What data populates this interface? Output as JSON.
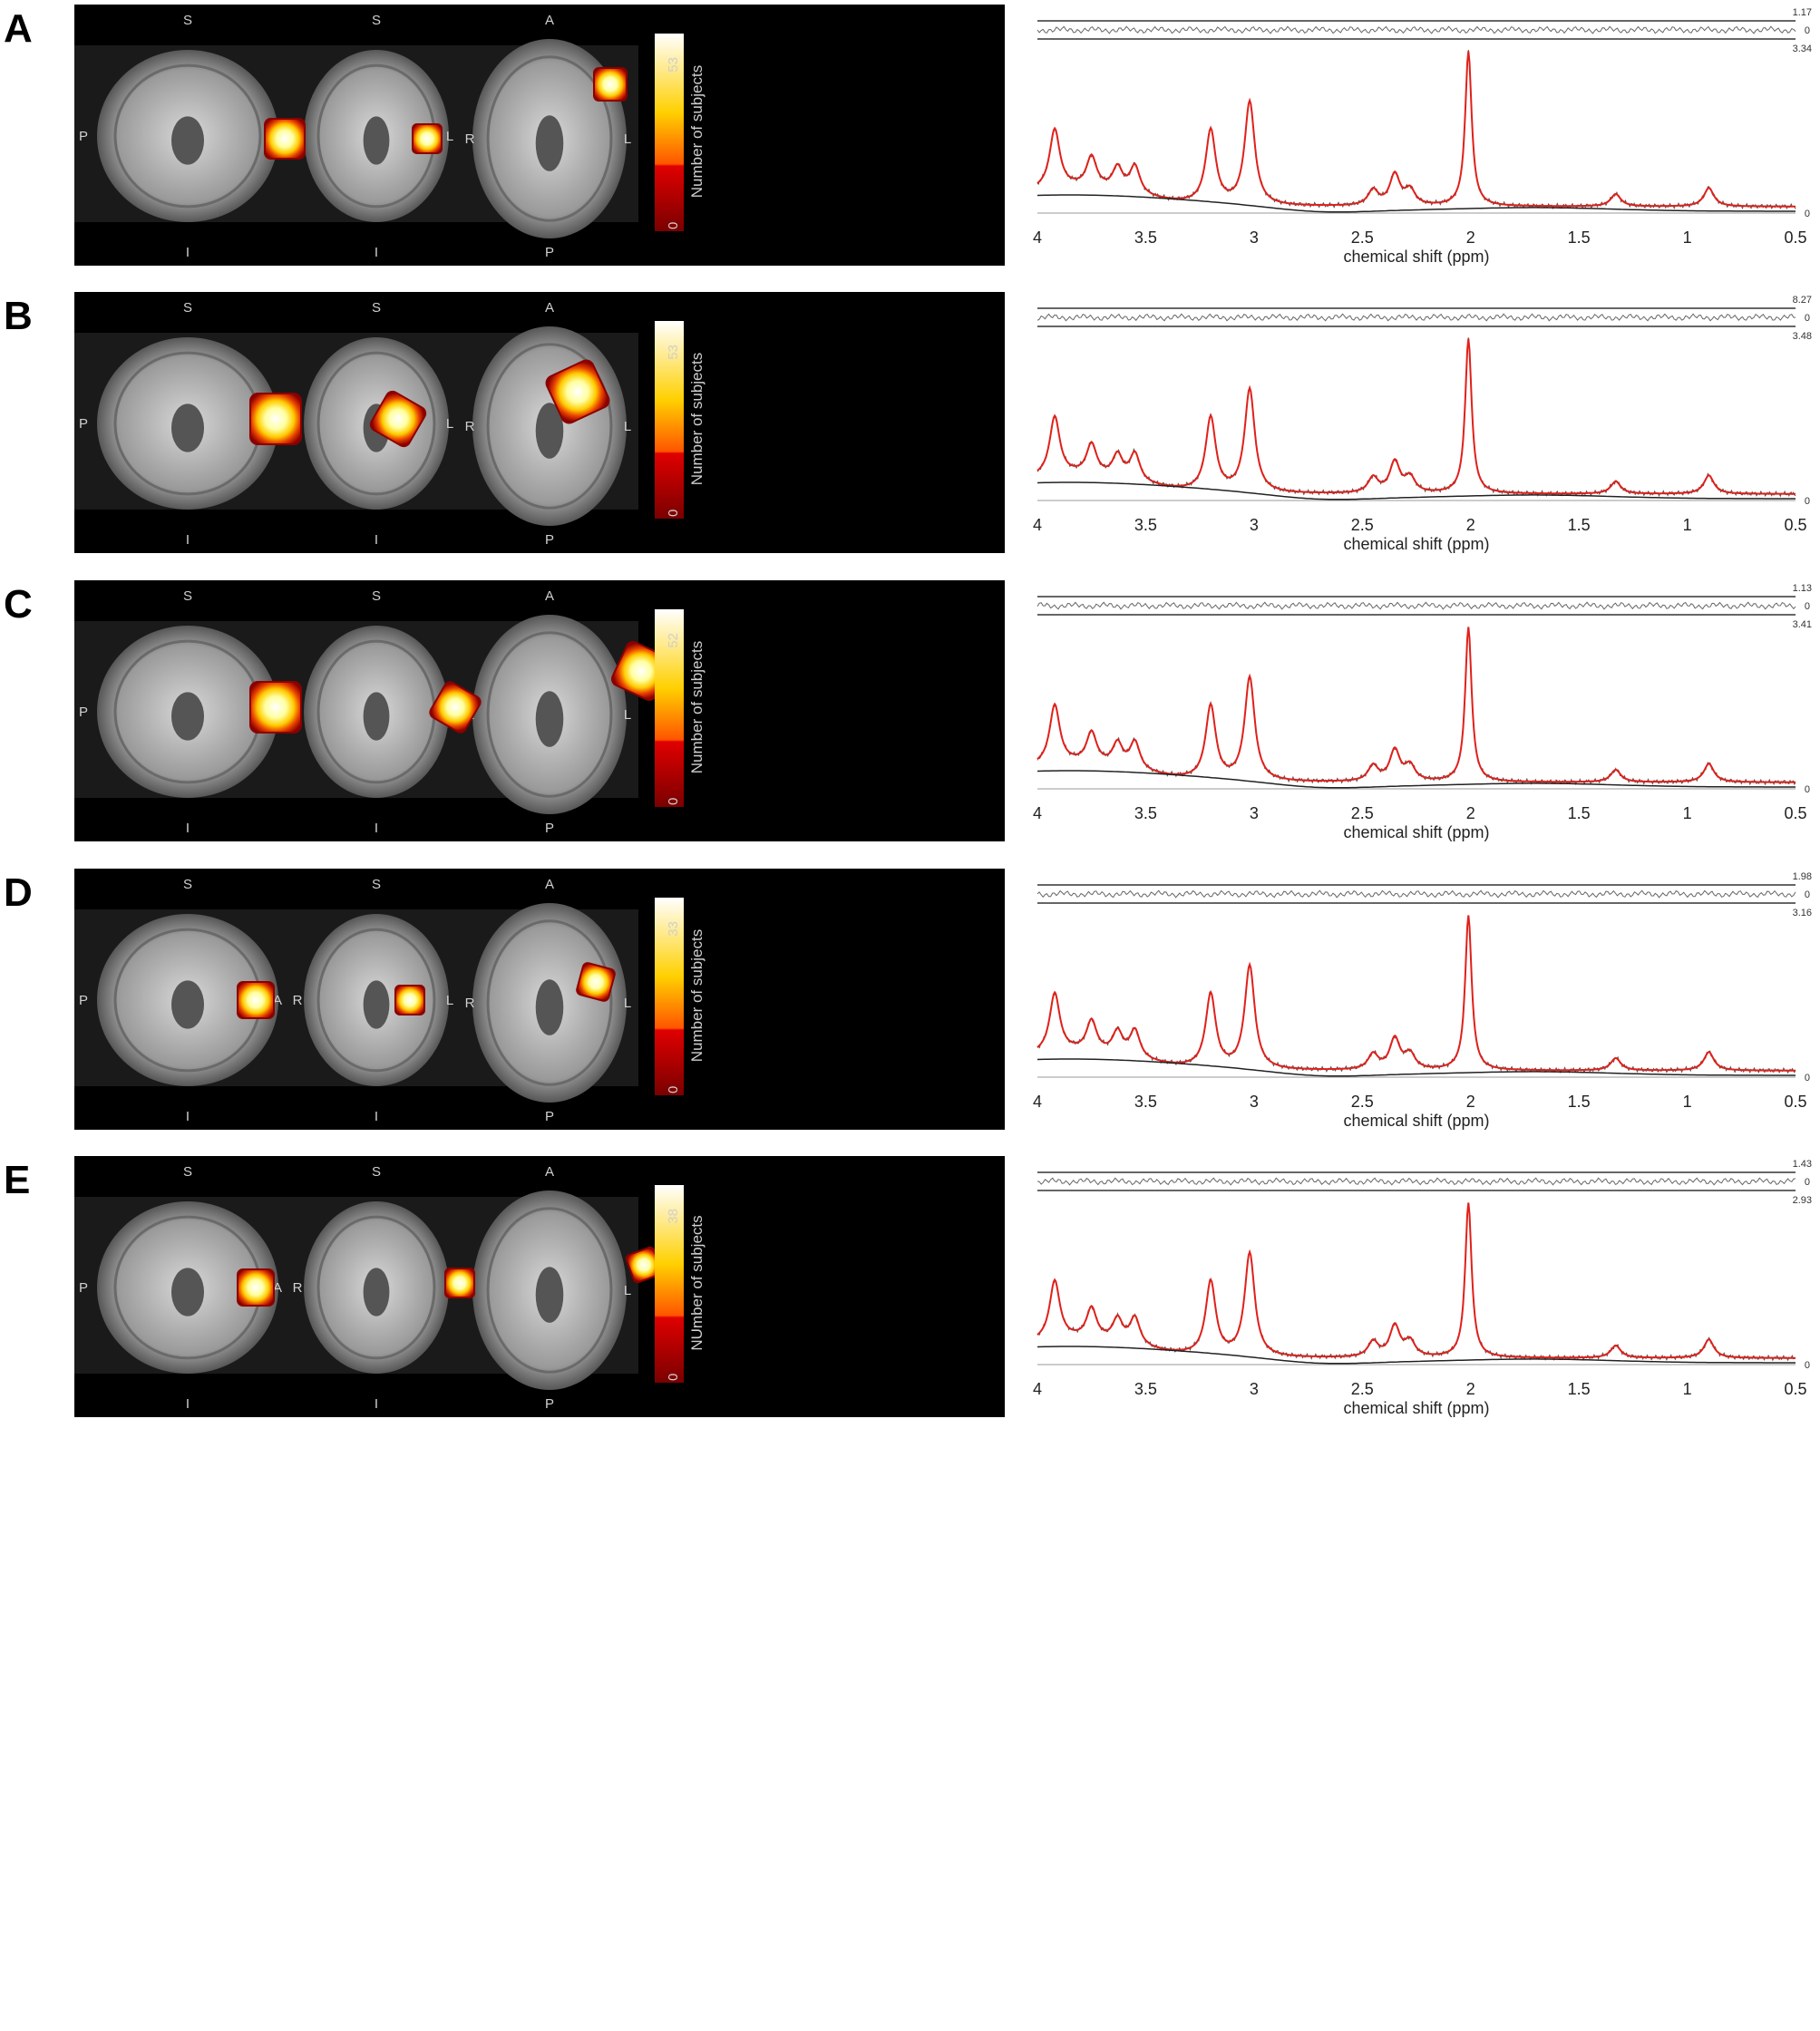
{
  "figure": {
    "x_axis_label": "chemical shift (ppm)",
    "x_ticks": [
      "4",
      "3.5",
      "3",
      "2.5",
      "2",
      "1.5",
      "1",
      "0.5"
    ],
    "orientation_labels": {
      "sagittal": {
        "top": "S",
        "bottom": "I",
        "left": "P",
        "right": "A"
      },
      "coronal": {
        "top": "S",
        "bottom": "I",
        "left": "R",
        "right": "L"
      },
      "axial": {
        "top": "A",
        "bottom": "P",
        "left": "R",
        "right": "L"
      }
    },
    "colorbar_min": "0",
    "panels": [
      {
        "letter": "A",
        "colorbar_label": "Number of subjects",
        "colorbar_max": "53",
        "residual_scale": "1.17",
        "residual_zero": "0",
        "spectrum_max": "3.34",
        "spectrum_zero": "0"
      },
      {
        "letter": "B",
        "colorbar_label": "Number of subjects",
        "colorbar_max": "53",
        "residual_scale": "8.27",
        "residual_zero": "0",
        "spectrum_max": "3.48",
        "spectrum_zero": "0"
      },
      {
        "letter": "C",
        "colorbar_label": "Number of subjects",
        "colorbar_max": "52",
        "residual_scale": "1.13",
        "residual_zero": "0",
        "spectrum_max": "3.41",
        "spectrum_zero": "0"
      },
      {
        "letter": "D",
        "colorbar_label": "Number of subjects",
        "colorbar_max": "33",
        "residual_scale": "1.98",
        "residual_zero": "0",
        "spectrum_max": "3.16",
        "spectrum_zero": "0"
      },
      {
        "letter": "E",
        "colorbar_label": "NUmber of subjects",
        "colorbar_max": "38",
        "residual_scale": "1.43",
        "residual_zero": "0",
        "spectrum_max": "2.93",
        "spectrum_zero": "0"
      }
    ]
  },
  "chart_data": {
    "type": "line",
    "xlabel": "chemical shift (ppm)",
    "xlim": [
      4,
      0.5
    ],
    "x_ticks": [
      4,
      3.5,
      3,
      2.5,
      2,
      1.5,
      1,
      0.5
    ],
    "series": [
      {
        "color": "#e0201a",
        "peaks": [
          [
            3.92,
            0.38
          ],
          [
            3.75,
            0.2
          ],
          [
            3.63,
            0.15
          ],
          [
            3.55,
            0.18
          ],
          [
            3.2,
            0.48
          ],
          [
            3.02,
            0.67
          ],
          [
            2.45,
            0.1
          ],
          [
            2.35,
            0.2
          ],
          [
            2.28,
            0.1
          ],
          [
            2.01,
            1.0
          ],
          [
            1.33,
            0.08
          ],
          [
            0.9,
            0.12
          ]
        ]
      },
      {
        "color": "#222222",
        "peaks": [
          [
            3.85,
            0.1
          ],
          [
            2.7,
            0.02
          ],
          [
            1.7,
            0.02
          ]
        ]
      }
    ],
    "colors": {
      "fit": "#e0201a",
      "data": "#555555",
      "baseline": "#222222"
    }
  }
}
